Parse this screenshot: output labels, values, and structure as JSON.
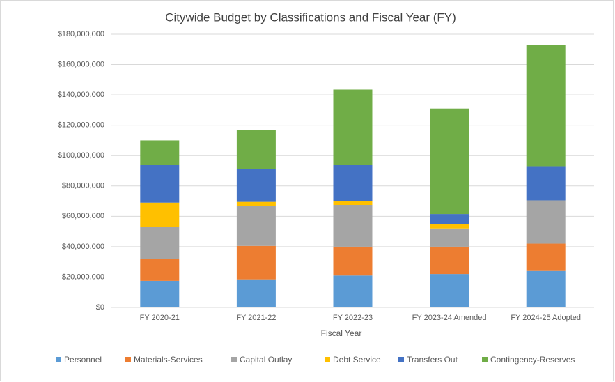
{
  "chart_data": {
    "type": "stacked_bar",
    "title": "Citywide Budget by Classifications and Fiscal Year (FY)",
    "x_label": "Fiscal Year",
    "categories": [
      "FY 2020-21",
      "FY 2021-22",
      "FY 2022-23",
      "FY 2023-24 Amended",
      "FY 2024-25 Adopted"
    ],
    "series": [
      {
        "name": "Personnel",
        "color": "#5b9bd5",
        "values": [
          17500000,
          18500000,
          21000000,
          22000000,
          24000000
        ]
      },
      {
        "name": "Materials-Services",
        "color": "#ed7d31",
        "values": [
          14500000,
          22000000,
          19000000,
          18000000,
          18000000
        ]
      },
      {
        "name": "Capital Outlay",
        "color": "#a5a5a5",
        "values": [
          21000000,
          26500000,
          27500000,
          12000000,
          28500000
        ]
      },
      {
        "name": "Debt Service",
        "color": "#ffc000",
        "values": [
          16000000,
          2500000,
          2500000,
          3000000,
          0
        ]
      },
      {
        "name": "Transfers Out",
        "color": "#4472c4",
        "values": [
          25000000,
          21500000,
          24000000,
          6500000,
          22500000
        ]
      },
      {
        "name": "Contingency-Reserves",
        "color": "#70ad47",
        "values": [
          16000000,
          26000000,
          49500000,
          69500000,
          80000000
        ]
      }
    ],
    "ylim": [
      0,
      180000000
    ],
    "yticks": [
      {
        "value": 0,
        "label": "$0"
      },
      {
        "value": 20000000,
        "label": "$20,000,000"
      },
      {
        "value": 40000000,
        "label": "$40,000,000"
      },
      {
        "value": 60000000,
        "label": "$60,000,000"
      },
      {
        "value": 80000000,
        "label": "$80,000,000"
      },
      {
        "value": 100000000,
        "label": "$100,000,000"
      },
      {
        "value": 120000000,
        "label": "$120,000,000"
      },
      {
        "value": 140000000,
        "label": "$140,000,000"
      },
      {
        "value": 160000000,
        "label": "$160,000,000"
      },
      {
        "value": 180000000,
        "label": "$180,000,000"
      }
    ],
    "grid": true,
    "legend": "bottom"
  }
}
